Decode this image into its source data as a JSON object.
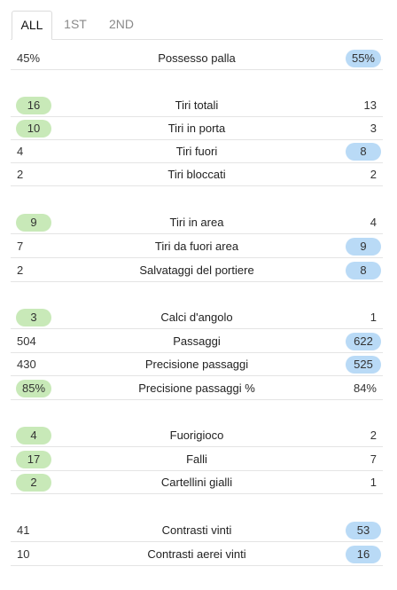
{
  "tabs": [
    {
      "label": "ALL",
      "active": true
    },
    {
      "label": "1ST",
      "active": false
    },
    {
      "label": "2ND",
      "active": false
    }
  ],
  "colors": {
    "home_highlight": "#c8e9b8",
    "away_highlight": "#b9daf6"
  },
  "stats": [
    {
      "label": "Possesso palla",
      "home": "45%",
      "away": "55%",
      "leader": "away"
    },
    {
      "label": "Tiri totali",
      "home": "16",
      "away": "13",
      "leader": "home"
    },
    {
      "label": "Tiri in porta",
      "home": "10",
      "away": "3",
      "leader": "home"
    },
    {
      "label": "Tiri fuori",
      "home": "4",
      "away": "8",
      "leader": "away"
    },
    {
      "label": "Tiri bloccati",
      "home": "2",
      "away": "2",
      "leader": "none"
    },
    {
      "label": "Tiri in area",
      "home": "9",
      "away": "4",
      "leader": "home"
    },
    {
      "label": "Tiri da fuori area",
      "home": "7",
      "away": "9",
      "leader": "away"
    },
    {
      "label": "Salvataggi del portiere",
      "home": "2",
      "away": "8",
      "leader": "away"
    },
    {
      "label": "Calci d'angolo",
      "home": "3",
      "away": "1",
      "leader": "home"
    },
    {
      "label": "Passaggi",
      "home": "504",
      "away": "622",
      "leader": "away"
    },
    {
      "label": "Precisione passaggi",
      "home": "430",
      "away": "525",
      "leader": "away"
    },
    {
      "label": "Precisione passaggi %",
      "home": "85%",
      "away": "84%",
      "leader": "home"
    },
    {
      "label": "Fuorigioco",
      "home": "4",
      "away": "2",
      "leader": "home"
    },
    {
      "label": "Falli",
      "home": "17",
      "away": "7",
      "leader": "home"
    },
    {
      "label": "Cartellini gialli",
      "home": "2",
      "away": "1",
      "leader": "home"
    },
    {
      "label": "Contrasti vinti",
      "home": "41",
      "away": "53",
      "leader": "away"
    },
    {
      "label": "Contrasti aerei vinti",
      "home": "10",
      "away": "16",
      "leader": "away"
    }
  ]
}
